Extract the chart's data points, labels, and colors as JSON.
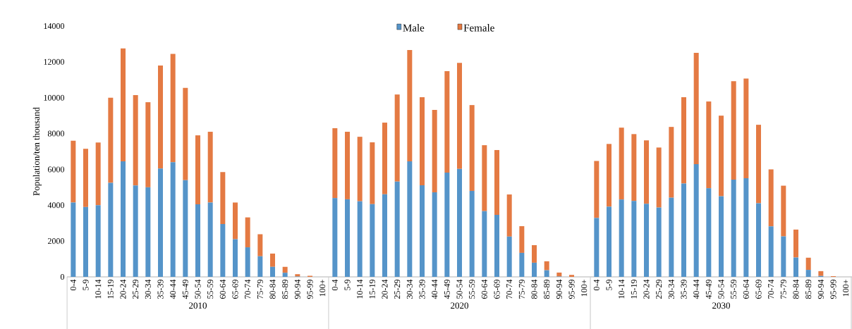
{
  "chart_data": [
    {
      "type": "bar",
      "stacked": true,
      "ylabel": "Population/ten thousand",
      "xlabel": "2010",
      "categories": [
        "0-4",
        "5-9",
        "10-14",
        "15-19",
        "20-24",
        "25-29",
        "30-34",
        "35-39",
        "40-44",
        "45-49",
        "50-54",
        "55-59",
        "60-64",
        "65-69",
        "70-74",
        "75-79",
        "80-84",
        "85-89",
        "90-94",
        "95-99",
        "100+"
      ],
      "ylim": [
        0,
        14000
      ],
      "yticks": [
        0,
        2000,
        4000,
        6000,
        8000,
        10000,
        12000,
        14000
      ],
      "series": [
        {
          "color": "#5594c9",
          "values": [
            4150,
            3900,
            4000,
            5250,
            6450,
            5100,
            5000,
            6050,
            6400,
            5400,
            4050,
            4150,
            2950,
            2100,
            1650,
            1150,
            560,
            230,
            20,
            0,
            0
          ]
        },
        {
          "color": "#e47a43",
          "values": [
            3450,
            3250,
            3500,
            4750,
            6300,
            5050,
            4750,
            5750,
            6050,
            5150,
            3850,
            3950,
            2900,
            2050,
            1670,
            1230,
            740,
            330,
            130,
            60,
            0
          ]
        }
      ]
    },
    {
      "type": "bar",
      "stacked": true,
      "xlabel": "2020",
      "tick_labels": "x",
      "legend": "top",
      "categories": [
        "0-4",
        "5-9",
        "10-14",
        "15-19",
        "20-24",
        "25-29",
        "30-34",
        "35-39",
        "40-44",
        "45-49",
        "50-54",
        "55-59",
        "60-64",
        "65-69",
        "70-74",
        "75-79",
        "80-84",
        "85-89",
        "90-94",
        "95-99",
        "100+"
      ],
      "ylim": [
        0,
        14000
      ],
      "yticks": [
        0,
        2000,
        4000,
        6000,
        8000,
        10000,
        12000,
        14000
      ],
      "series": [
        {
          "name": "Male",
          "color": "#5594c9",
          "values": [
            4400,
            4330,
            4220,
            4060,
            4610,
            5320,
            6450,
            5110,
            4720,
            5820,
            6030,
            4800,
            3670,
            3460,
            2250,
            1340,
            790,
            370,
            20,
            0,
            0
          ]
        },
        {
          "name": "Female",
          "color": "#e47a43",
          "values": [
            3900,
            3770,
            3600,
            3450,
            4000,
            4860,
            6210,
            4920,
            4600,
            5660,
            5920,
            4790,
            3680,
            3620,
            2350,
            1490,
            980,
            500,
            220,
            110,
            0
          ]
        }
      ]
    },
    {
      "type": "bar",
      "stacked": true,
      "xlabel": "2030",
      "tick_labels": "x",
      "categories": [
        "0-4",
        "5-9",
        "10-14",
        "15-19",
        "20-24",
        "25-29",
        "30-34",
        "35-39",
        "40-44",
        "45-49",
        "50-54",
        "55-59",
        "60-64",
        "65-69",
        "70-74",
        "75-79",
        "80-84",
        "85-89",
        "90-94",
        "95-99",
        "100+"
      ],
      "ylim": [
        0,
        14000
      ],
      "yticks": [
        0,
        2000,
        4000,
        6000,
        8000,
        10000,
        12000,
        14000
      ],
      "series": [
        {
          "color": "#5594c9",
          "values": [
            3290,
            3920,
            4320,
            4240,
            4080,
            3870,
            4420,
            5210,
            6290,
            4950,
            4500,
            5430,
            5510,
            4110,
            2820,
            2260,
            1080,
            390,
            50,
            0,
            0
          ]
        },
        {
          "color": "#e47a43",
          "values": [
            3180,
            3500,
            4010,
            3730,
            3540,
            3350,
            3950,
            4820,
            6220,
            4840,
            4500,
            5490,
            5560,
            4380,
            3180,
            2830,
            1560,
            680,
            270,
            40,
            0
          ]
        }
      ]
    }
  ]
}
